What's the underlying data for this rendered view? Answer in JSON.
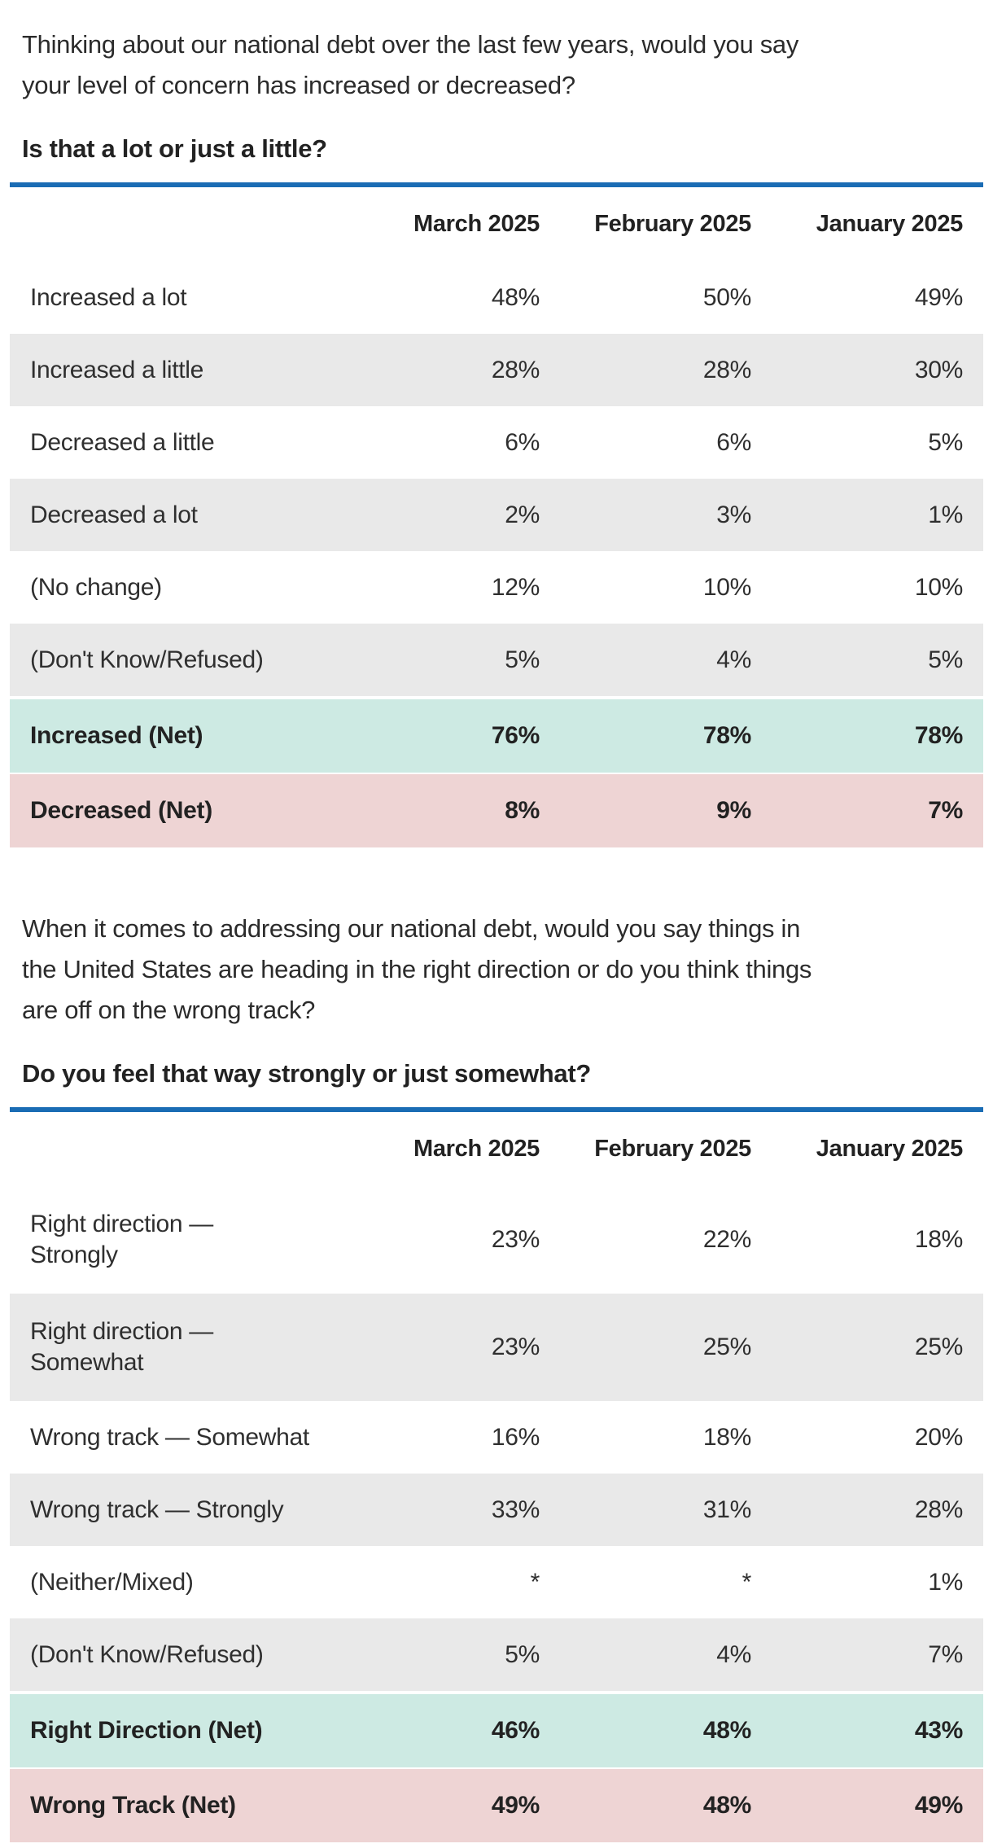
{
  "colors": {
    "accent_line": "#1a6cb4",
    "row_alt_background": "#e9e9e9",
    "net_positive_background": "#cdeae3",
    "net_negative_background": "#eed4d4",
    "text": "#2b2b2b"
  },
  "tables": [
    {
      "question": "Thinking about our national debt over the last few years, would you say\nyour level of concern has increased or decreased?",
      "subquestion": "Is that a lot or just a little?",
      "columns": [
        "March 2025",
        "February 2025",
        "January 2025"
      ],
      "rows": [
        {
          "label": "Increased a lot",
          "values": [
            "48%",
            "50%",
            "49%"
          ],
          "style": "plain"
        },
        {
          "label": "Increased a little",
          "values": [
            "28%",
            "28%",
            "30%"
          ],
          "style": "alt"
        },
        {
          "label": "Decreased a little",
          "values": [
            "6%",
            "6%",
            "5%"
          ],
          "style": "plain"
        },
        {
          "label": "Decreased a lot",
          "values": [
            "2%",
            "3%",
            "1%"
          ],
          "style": "alt"
        },
        {
          "label": "(No change)",
          "values": [
            "12%",
            "10%",
            "10%"
          ],
          "style": "plain"
        },
        {
          "label": "(Don't Know/Refused)",
          "values": [
            "5%",
            "4%",
            "5%"
          ],
          "style": "alt"
        },
        {
          "label": "Increased (Net)",
          "values": [
            "76%",
            "78%",
            "78%"
          ],
          "style": "net-positive"
        },
        {
          "label": "Decreased (Net)",
          "values": [
            "8%",
            "9%",
            "7%"
          ],
          "style": "net-negative"
        }
      ]
    },
    {
      "question": "When it comes to addressing our national debt, would you say things in\nthe United States are heading in the right direction or do you think things\nare off on the wrong track?",
      "subquestion": "Do you feel that way strongly or just somewhat?",
      "columns": [
        "March 2025",
        "February 2025",
        "January 2025"
      ],
      "rows": [
        {
          "label": "Right direction —\nStrongly",
          "values": [
            "23%",
            "22%",
            "18%"
          ],
          "style": "plain"
        },
        {
          "label": "Right direction —\nSomewhat",
          "values": [
            "23%",
            "25%",
            "25%"
          ],
          "style": "alt"
        },
        {
          "label": "Wrong track — Somewhat",
          "values": [
            "16%",
            "18%",
            "20%"
          ],
          "style": "plain"
        },
        {
          "label": "Wrong track — Strongly",
          "values": [
            "33%",
            "31%",
            "28%"
          ],
          "style": "alt"
        },
        {
          "label": "(Neither/Mixed)",
          "values": [
            "*",
            "*",
            "1%"
          ],
          "style": "plain"
        },
        {
          "label": "(Don't Know/Refused)",
          "values": [
            "5%",
            "4%",
            "7%"
          ],
          "style": "alt"
        },
        {
          "label": "Right Direction (Net)",
          "values": [
            "46%",
            "48%",
            "43%"
          ],
          "style": "net-positive"
        },
        {
          "label": "Wrong Track (Net)",
          "values": [
            "49%",
            "48%",
            "49%"
          ],
          "style": "net-negative"
        }
      ]
    }
  ]
}
